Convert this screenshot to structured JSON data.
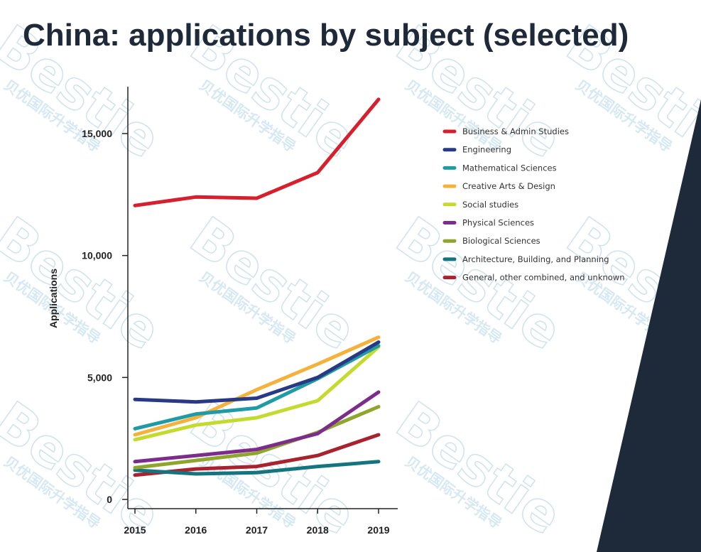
{
  "title": "China: applications by subject (selected)",
  "watermark": {
    "text": "Bestie",
    "subtext": "贝优国际升学指导"
  },
  "colors": {
    "title": "#1e2a3a",
    "dark_panel": "#1e2a3a"
  },
  "chart_data": {
    "type": "line",
    "title": "China: applications by subject (selected)",
    "xlabel": "",
    "ylabel": "Applications",
    "x": [
      "2015",
      "2016",
      "2017",
      "2018",
      "2019"
    ],
    "ylim": [
      0,
      17000
    ],
    "yticks": [
      0,
      5000,
      10000,
      15000
    ],
    "ytick_labels": [
      "0",
      "5,000",
      "10,000",
      "15,000"
    ],
    "grid": false,
    "legend_position": "right",
    "series": [
      {
        "name": "Business & Admin Studies",
        "color": "#d6202e",
        "values": [
          12050,
          12400,
          12350,
          13400,
          16400
        ]
      },
      {
        "name": "Engineering",
        "color": "#283a85",
        "values": [
          4100,
          4000,
          4150,
          5000,
          6450
        ]
      },
      {
        "name": "Mathematical Sciences",
        "color": "#1f9ba6",
        "values": [
          2900,
          3500,
          3750,
          4950,
          6300
        ]
      },
      {
        "name": "Creative Arts & Design",
        "color": "#f6b13a",
        "values": [
          2650,
          3350,
          4500,
          5550,
          6650
        ]
      },
      {
        "name": "Social studies",
        "color": "#c4db2e",
        "values": [
          2450,
          3050,
          3350,
          4050,
          6250
        ]
      },
      {
        "name": "Physical Sciences",
        "color": "#7e2c8c",
        "values": [
          1550,
          1800,
          2050,
          2700,
          4400
        ]
      },
      {
        "name": "Biological Sciences",
        "color": "#8fa62d",
        "values": [
          1300,
          1600,
          1900,
          2750,
          3800
        ]
      },
      {
        "name": "Architecture, Building, and Planning",
        "color": "#14747f",
        "values": [
          1200,
          1050,
          1100,
          1350,
          1550
        ]
      },
      {
        "name": "General, other combined, and unknown",
        "color": "#a8232e",
        "values": [
          1000,
          1250,
          1350,
          1800,
          2650
        ]
      }
    ]
  }
}
